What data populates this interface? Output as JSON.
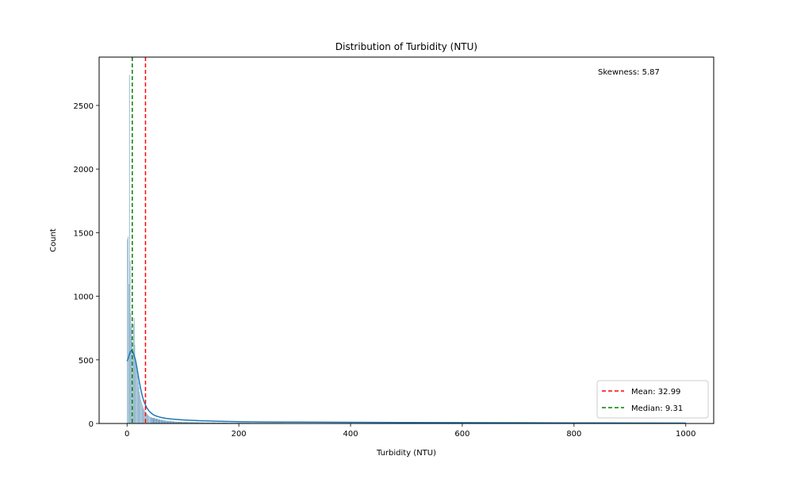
{
  "chart_data": {
    "type": "bar",
    "title": "Distribution of Turbidity (NTU)",
    "xlabel": "Turbidity (NTU)",
    "ylabel": "Count",
    "xlim": [
      -50,
      1050
    ],
    "ylim": [
      0,
      2880
    ],
    "xticks": [
      0,
      200,
      400,
      600,
      800,
      1000
    ],
    "yticks": [
      0,
      500,
      1000,
      1500,
      2000,
      2500
    ],
    "grid": false,
    "legend_position": "lower-right",
    "annotation": "Skewness: 5.87",
    "colors": {
      "bars": "#4c86ad",
      "kde": "#1f77b4",
      "mean": "#ff0000",
      "median": "#008000"
    },
    "series": [
      {
        "type": "histogram",
        "bins": [
          {
            "x": 0.0,
            "count": 1450
          },
          {
            "x": 1.2,
            "count": 1470
          },
          {
            "x": 2.4,
            "count": 1100
          },
          {
            "x": 3.6,
            "count": 2740
          },
          {
            "x": 4.8,
            "count": 1280
          },
          {
            "x": 6.0,
            "count": 870
          },
          {
            "x": 7.2,
            "count": 760
          },
          {
            "x": 8.4,
            "count": 650
          },
          {
            "x": 9.6,
            "count": 560
          },
          {
            "x": 10.8,
            "count": 780
          },
          {
            "x": 12.0,
            "count": 830
          },
          {
            "x": 13.2,
            "count": 620
          },
          {
            "x": 14.4,
            "count": 510
          },
          {
            "x": 15.6,
            "count": 480
          },
          {
            "x": 16.8,
            "count": 420
          },
          {
            "x": 18.0,
            "count": 380
          },
          {
            "x": 19.2,
            "count": 330
          },
          {
            "x": 20.4,
            "count": 290
          },
          {
            "x": 21.6,
            "count": 250
          },
          {
            "x": 22.8,
            "count": 220
          },
          {
            "x": 24.0,
            "count": 190
          },
          {
            "x": 25.2,
            "count": 170
          },
          {
            "x": 26.4,
            "count": 150
          },
          {
            "x": 27.6,
            "count": 135
          },
          {
            "x": 28.8,
            "count": 120
          },
          {
            "x": 30.0,
            "count": 110
          },
          {
            "x": 31.2,
            "count": 100
          },
          {
            "x": 32.4,
            "count": 92
          },
          {
            "x": 33.6,
            "count": 85
          },
          {
            "x": 34.8,
            "count": 78
          },
          {
            "x": 36.0,
            "count": 72
          },
          {
            "x": 37.2,
            "count": 66
          },
          {
            "x": 38.4,
            "count": 61
          },
          {
            "x": 39.6,
            "count": 57
          },
          {
            "x": 40.8,
            "count": 53
          },
          {
            "x": 42.0,
            "count": 49
          },
          {
            "x": 45.0,
            "count": 44
          },
          {
            "x": 50.0,
            "count": 38
          },
          {
            "x": 55.0,
            "count": 32
          },
          {
            "x": 60.0,
            "count": 28
          },
          {
            "x": 65.0,
            "count": 24
          },
          {
            "x": 70.0,
            "count": 21
          },
          {
            "x": 75.0,
            "count": 19
          },
          {
            "x": 80.0,
            "count": 17
          },
          {
            "x": 85.0,
            "count": 15
          },
          {
            "x": 90.0,
            "count": 14
          },
          {
            "x": 95.0,
            "count": 13
          },
          {
            "x": 100.0,
            "count": 12
          },
          {
            "x": 110.0,
            "count": 11
          },
          {
            "x": 120.0,
            "count": 10
          },
          {
            "x": 130.0,
            "count": 9
          },
          {
            "x": 140.0,
            "count": 8
          },
          {
            "x": 150.0,
            "count": 8
          },
          {
            "x": 160.0,
            "count": 7
          },
          {
            "x": 170.0,
            "count": 7
          },
          {
            "x": 180.0,
            "count": 6
          },
          {
            "x": 190.0,
            "count": 6
          },
          {
            "x": 200.0,
            "count": 6
          },
          {
            "x": 220.0,
            "count": 5
          },
          {
            "x": 240.0,
            "count": 5
          },
          {
            "x": 260.0,
            "count": 5
          },
          {
            "x": 280.0,
            "count": 4
          },
          {
            "x": 300.0,
            "count": 4
          },
          {
            "x": 350.0,
            "count": 4
          },
          {
            "x": 400.0,
            "count": 3
          },
          {
            "x": 450.0,
            "count": 3
          },
          {
            "x": 500.0,
            "count": 3
          },
          {
            "x": 550.0,
            "count": 2
          },
          {
            "x": 600.0,
            "count": 2
          },
          {
            "x": 650.0,
            "count": 2
          },
          {
            "x": 700.0,
            "count": 2
          },
          {
            "x": 750.0,
            "count": 2
          },
          {
            "x": 800.0,
            "count": 1
          },
          {
            "x": 850.0,
            "count": 1
          },
          {
            "x": 900.0,
            "count": 1
          },
          {
            "x": 950.0,
            "count": 1
          },
          {
            "x": 998.0,
            "count": 1
          }
        ]
      },
      {
        "type": "kde",
        "points": [
          {
            "x": 0,
            "y": 490
          },
          {
            "x": 2,
            "y": 510
          },
          {
            "x": 4,
            "y": 540
          },
          {
            "x": 6,
            "y": 565
          },
          {
            "x": 8,
            "y": 575
          },
          {
            "x": 10,
            "y": 565
          },
          {
            "x": 12,
            "y": 545
          },
          {
            "x": 15,
            "y": 500
          },
          {
            "x": 18,
            "y": 430
          },
          {
            "x": 21,
            "y": 350
          },
          {
            "x": 24,
            "y": 280
          },
          {
            "x": 27,
            "y": 220
          },
          {
            "x": 30,
            "y": 175
          },
          {
            "x": 35,
            "y": 125
          },
          {
            "x": 40,
            "y": 95
          },
          {
            "x": 45,
            "y": 75
          },
          {
            "x": 50,
            "y": 62
          },
          {
            "x": 60,
            "y": 48
          },
          {
            "x": 70,
            "y": 40
          },
          {
            "x": 80,
            "y": 35
          },
          {
            "x": 100,
            "y": 28
          },
          {
            "x": 130,
            "y": 22
          },
          {
            "x": 160,
            "y": 18
          },
          {
            "x": 200,
            "y": 14
          },
          {
            "x": 250,
            "y": 12
          },
          {
            "x": 300,
            "y": 11
          },
          {
            "x": 400,
            "y": 9
          },
          {
            "x": 500,
            "y": 8
          },
          {
            "x": 600,
            "y": 7
          },
          {
            "x": 700,
            "y": 6
          },
          {
            "x": 800,
            "y": 5
          },
          {
            "x": 900,
            "y": 4
          },
          {
            "x": 1000,
            "y": 3
          }
        ]
      }
    ],
    "vlines": [
      {
        "name": "Mean: 32.99",
        "x": 32.99,
        "style": "dashed",
        "color": "#ff0000"
      },
      {
        "name": "Median: 9.31",
        "x": 9.31,
        "style": "dashed",
        "color": "#008000"
      }
    ]
  }
}
